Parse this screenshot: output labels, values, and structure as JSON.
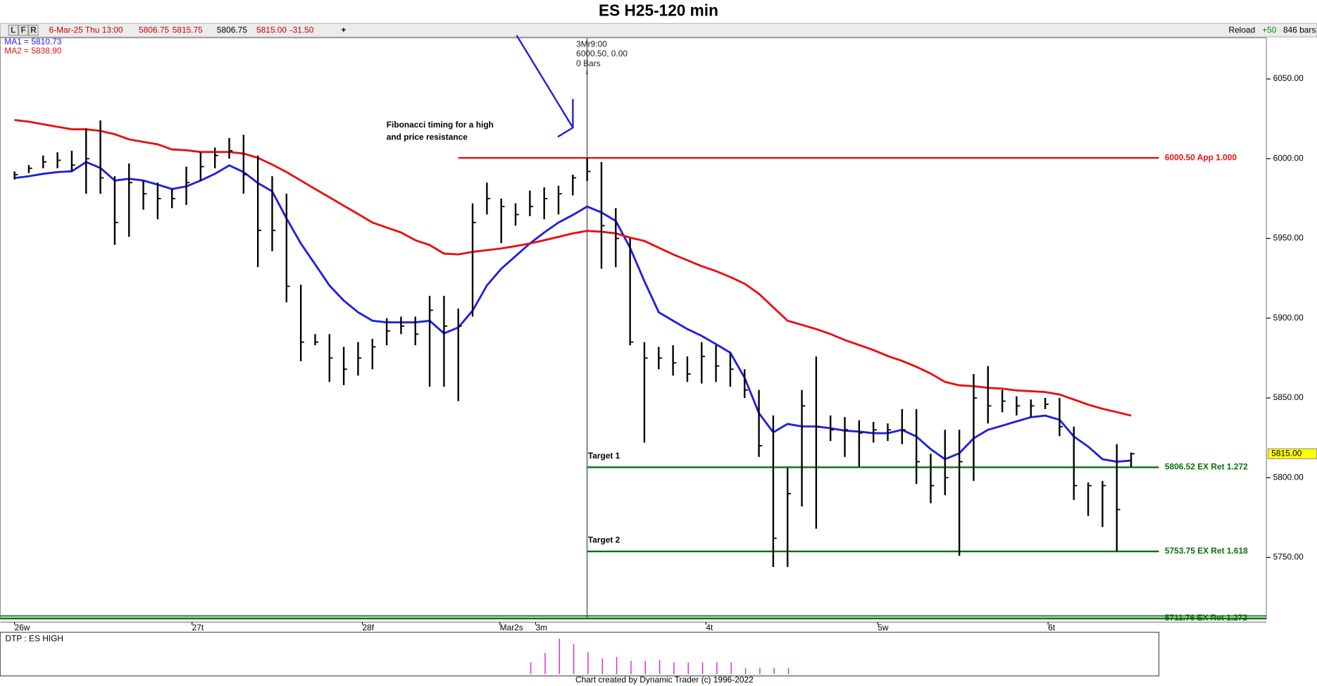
{
  "chart_data": {
    "type": "ohlc",
    "title": "ES H25-120 min",
    "toolbar": {
      "buttons": [
        "L",
        "F",
        "R"
      ],
      "date": "6-Mar-25 Thu 13:00",
      "quote": [
        "5806.75",
        "5815.75",
        "5806.75",
        "5815.00",
        "-31.50"
      ],
      "plus": "+",
      "right": [
        "Reload",
        "+50",
        "846 bars"
      ]
    },
    "high": [
      5992,
      5996,
      6002,
      6004,
      6005,
      6019,
      6024,
      5989,
      5997,
      5986,
      5985,
      5981,
      5995,
      6004,
      6007,
      6013,
      6015,
      6002,
      5989,
      5978,
      5921,
      5890,
      5890,
      5882,
      5885,
      5887,
      5900,
      5901,
      5901,
      5914,
      5914,
      5906,
      5972,
      5985,
      5975,
      5972,
      5980,
      5982,
      5983,
      5990,
      6000.5,
      5998,
      5969,
      5950,
      5885,
      5882,
      5883,
      5876,
      5885,
      5883,
      5878,
      5868,
      5855,
      5839,
      5806,
      5855,
      5876,
      5839,
      5838,
      5836,
      5835,
      5834,
      5843,
      5843,
      5815,
      5830,
      5830,
      5865,
      5870,
      5855,
      5851,
      5849,
      5850,
      5850,
      5832,
      5797,
      5798,
      5821,
      5815.75
    ],
    "low": [
      5987,
      5991,
      5994,
      5994,
      5992,
      5978,
      5978,
      5946,
      5951,
      5968,
      5962,
      5969,
      5971,
      5986,
      5994,
      6000,
      5978,
      5932,
      5942,
      5910,
      5873,
      5883,
      5860,
      5858,
      5864,
      5868,
      5883,
      5890,
      5883,
      5857,
      5857,
      5848,
      5901,
      5965,
      5947,
      5958,
      5964,
      5962,
      5965,
      5977,
      5986,
      5931,
      5932,
      5883,
      5822,
      5868,
      5864,
      5860,
      5859,
      5860,
      5857,
      5850,
      5813,
      5744,
      5744,
      5782,
      5768,
      5823,
      5813,
      5807,
      5822,
      5823,
      5821,
      5796,
      5784,
      5789,
      5751,
      5798,
      5834,
      5841,
      5839,
      5838,
      5843,
      5826,
      5786,
      5776,
      5769,
      5754,
      5806.75
    ],
    "close": [
      5990,
      5994,
      5998,
      5999,
      5996,
      6000,
      5988,
      5960,
      5985,
      5978,
      5975,
      5975,
      5985,
      5995,
      6002,
      6005,
      5990,
      5955,
      5955,
      5920,
      5885,
      5885,
      5875,
      5868,
      5875,
      5882,
      5892,
      5895,
      5890,
      5905,
      5895,
      5895,
      5960,
      5975,
      5970,
      5965,
      5970,
      5975,
      5978,
      5988,
      5992,
      5958,
      5950,
      5885,
      5875,
      5875,
      5872,
      5865,
      5876,
      5870,
      5868,
      5855,
      5820,
      5762,
      5790,
      5845,
      5832,
      5830,
      5830,
      5828,
      5830,
      5830,
      5830,
      5810,
      5795,
      5800,
      5810,
      5850,
      5845,
      5848,
      5845,
      5845,
      5846,
      5832,
      5795,
      5795,
      5795,
      5780,
      5815
    ],
    "series": [
      {
        "name": "MA1 = 5810.73",
        "color": "#1f1fe0",
        "values": [
          5987.9,
          5989.0,
          5990.5,
          5991.6,
          5992.1,
          5997.9,
          5994.2,
          5986.3,
          5987.4,
          5986.3,
          5983.7,
          5981.0,
          5982.6,
          5986.3,
          5990.5,
          5995.8,
          5991.6,
          5984.7,
          5979.5,
          5962.6,
          5946.8,
          5933.7,
          5920.5,
          5911.0,
          5903.7,
          5898.4,
          5897.4,
          5897.4,
          5897.4,
          5898.4,
          5890.5,
          5894.2,
          5904.7,
          5920.5,
          5931.0,
          5938.9,
          5946.8,
          5953.7,
          5960.0,
          5964.7,
          5970.0,
          5966.3,
          5961.0,
          5944.2,
          5923.2,
          5903.7,
          5898.4,
          5893.2,
          5888.9,
          5883.7,
          5878.4,
          5862.6,
          5840.5,
          5828.4,
          5833.7,
          5832.1,
          5832.1,
          5831.0,
          5829.5,
          5828.9,
          5827.9,
          5827.9,
          5830.0,
          5825.8,
          5817.9,
          5811.6,
          5815.3,
          5824.7,
          5830.0,
          5832.6,
          5835.3,
          5837.9,
          5838.9,
          5836.3,
          5825.8,
          5819.5,
          5811.6,
          5810.0,
          5810.73
        ]
      },
      {
        "name": "MA2 = 5838.90",
        "color": "#e81010",
        "values": [
          6024.2,
          6023.2,
          6021.6,
          6020.0,
          6018.4,
          6018.4,
          6017.4,
          6015.3,
          6012.1,
          6010.5,
          6009.0,
          6005.8,
          6005.3,
          6004.2,
          6004.2,
          6004.2,
          6003.2,
          6000.5,
          5996.3,
          5991.6,
          5986.3,
          5981.0,
          5975.8,
          5970.5,
          5965.3,
          5960.0,
          5956.8,
          5953.7,
          5948.9,
          5945.8,
          5940.5,
          5940.0,
          5941.6,
          5942.6,
          5943.7,
          5945.2,
          5946.8,
          5948.9,
          5951.0,
          5953.2,
          5954.7,
          5954.2,
          5953.2,
          5950.5,
          5948.4,
          5944.2,
          5940.0,
          5936.3,
          5932.6,
          5929.5,
          5925.8,
          5921.6,
          5915.3,
          5906.8,
          5898.4,
          5895.8,
          5893.2,
          5890.0,
          5886.3,
          5883.2,
          5880.0,
          5876.3,
          5873.2,
          5869.5,
          5865.3,
          5860.0,
          5857.9,
          5857.4,
          5856.3,
          5855.8,
          5854.7,
          5854.2,
          5853.7,
          5852.1,
          5849.0,
          5845.8,
          5843.2,
          5841.1,
          5838.9
        ]
      }
    ],
    "levels": [
      {
        "value": 6000.5,
        "label": "6000.50 App 1.000",
        "color": "#e81010",
        "from": 31
      },
      {
        "value": 5806.52,
        "label": "5806.52 EX Ret 1.272",
        "color": "#0a6e0a",
        "from": 40
      },
      {
        "value": 5753.75,
        "label": "5753.75 EX Ret 1.618",
        "color": "#0a6e0a",
        "from": 40
      },
      {
        "value": 5711.76,
        "label": "5711.76 EX Ret 1.272",
        "color": "#0a6e0a",
        "from": -1
      }
    ],
    "last_price": {
      "value": 5815,
      "label": "5815.00"
    },
    "ylim": [
      5711.5,
      6075.8
    ],
    "yticks": [
      {
        "value": 5750,
        "label": "5750.00"
      },
      {
        "value": 5800,
        "label": "5800.00"
      },
      {
        "value": 5850,
        "label": "5850.00"
      },
      {
        "value": 5900,
        "label": "5900.00"
      },
      {
        "value": 5950,
        "label": "5950.00"
      },
      {
        "value": 6000,
        "label": "6000.00"
      },
      {
        "value": 6050,
        "label": "6050.00"
      }
    ],
    "xticks": [
      {
        "value": 0,
        "label": "26w"
      },
      {
        "value": 12.4,
        "label": "27t"
      },
      {
        "value": 24.3,
        "label": "28f"
      },
      {
        "value": 33.9,
        "label": "Mar2s"
      },
      {
        "value": 36.4,
        "label": "3m"
      },
      {
        "value": 48.3,
        "label": "4t"
      },
      {
        "value": 60.3,
        "label": "5w"
      },
      {
        "value": 72.2,
        "label": "6t"
      }
    ],
    "marker": {
      "index": 40,
      "lines": [
        "3Mr9:00",
        "6000.50, 0.00",
        "0 Bars"
      ]
    },
    "annotations": [
      "Fibonacci timing for a high",
      "and price resistance"
    ],
    "targets": [
      {
        "text": "Target 1",
        "level": 1
      },
      {
        "text": "Target 2",
        "level": 2
      }
    ],
    "indicator": {
      "name": "DTP : ES HIGH",
      "color": "#e020e0",
      "from": 38,
      "ylim": [
        0,
        50
      ],
      "values": [
        15,
        27,
        45,
        38,
        28,
        20,
        22,
        17,
        17,
        18,
        15,
        15,
        15,
        15,
        15,
        8,
        8,
        8,
        8
      ]
    },
    "footer": "Chart created by Dynamic Trader  (c) 1996-2022"
  }
}
